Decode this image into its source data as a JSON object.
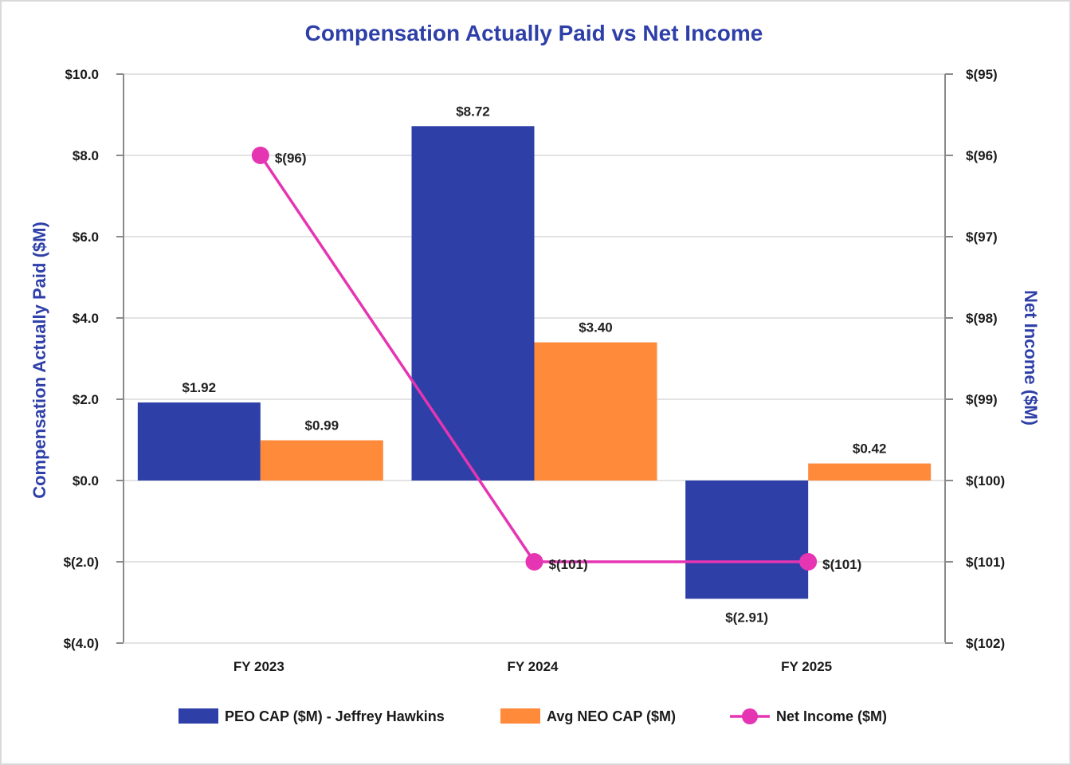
{
  "chart_data": {
    "type": "bar",
    "title": "Compensation Actually Paid vs Net Income",
    "ylabel": "Compensation Actually Paid ($M)",
    "y2label": "Net Income ($M)",
    "categories": [
      "FY 2023",
      "FY 2024",
      "FY 2025"
    ],
    "ylim": [
      -4,
      10
    ],
    "y2lim": [
      -102,
      -95
    ],
    "y_ticks": [
      {
        "value": 10,
        "label": "$10.0"
      },
      {
        "value": 8,
        "label": "$8.0"
      },
      {
        "value": 6,
        "label": "$6.0"
      },
      {
        "value": 4,
        "label": "$4.0"
      },
      {
        "value": 2,
        "label": "$2.0"
      },
      {
        "value": 0,
        "label": "$0.0"
      },
      {
        "value": -2,
        "label": "$(2.0)"
      },
      {
        "value": -4,
        "label": "$(4.0)"
      }
    ],
    "y2_ticks": [
      {
        "value": -95,
        "label": "$(95)"
      },
      {
        "value": -96,
        "label": "$(96)"
      },
      {
        "value": -97,
        "label": "$(97)"
      },
      {
        "value": -98,
        "label": "$(98)"
      },
      {
        "value": -99,
        "label": "$(99)"
      },
      {
        "value": -100,
        "label": "$(100)"
      },
      {
        "value": -101,
        "label": "$(101)"
      },
      {
        "value": -102,
        "label": "$(102)"
      }
    ],
    "grid": true,
    "legend_position": "bottom",
    "series": [
      {
        "name": "PEO CAP ($M) - Jeffrey Hawkins",
        "kind": "bar",
        "axis": "left",
        "color": "#2e40a8",
        "values": [
          1.92,
          8.72,
          -2.91
        ],
        "labels": [
          "$1.92",
          "$8.72",
          "$(2.91)"
        ]
      },
      {
        "name": "Avg NEO CAP ($M)",
        "kind": "bar",
        "axis": "left",
        "color": "#ff8a3a",
        "values": [
          0.99,
          3.4,
          0.42
        ],
        "labels": [
          "$0.99",
          "$3.40",
          "$0.42"
        ]
      },
      {
        "name": "Net Income ($M)",
        "kind": "line",
        "axis": "right",
        "color": "#e535b3",
        "values": [
          -96,
          -101,
          -101
        ],
        "labels": [
          "$(96)",
          "$(101)",
          "$(101)"
        ]
      }
    ]
  }
}
